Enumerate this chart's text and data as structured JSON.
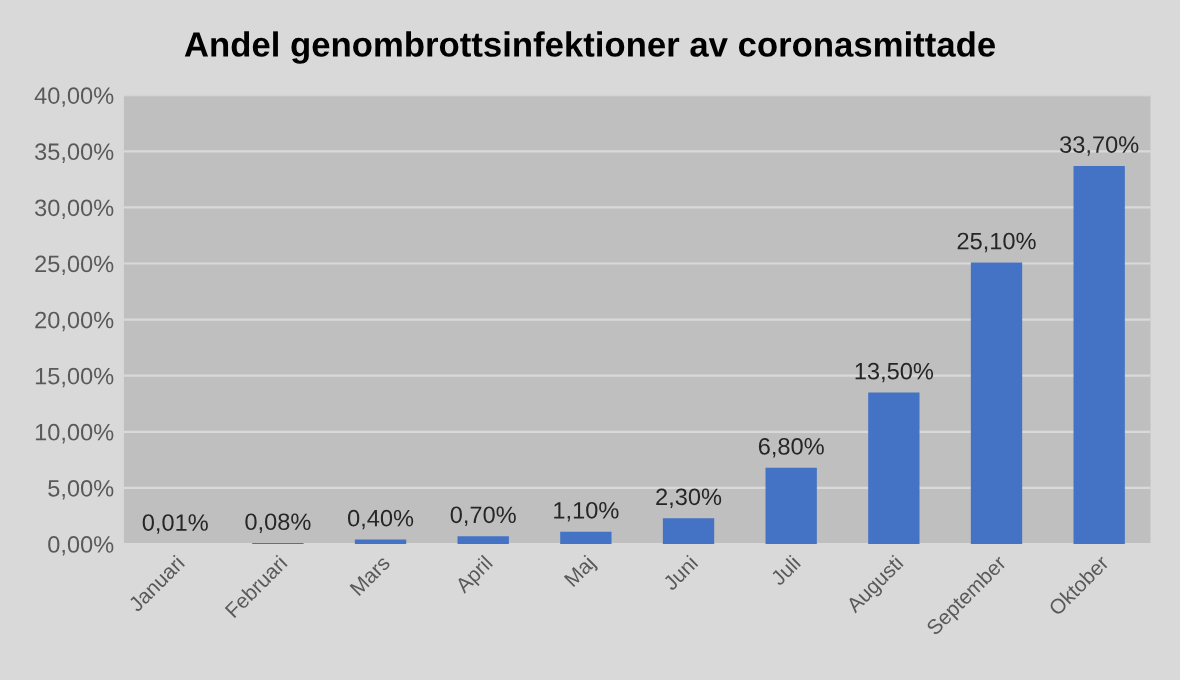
{
  "chart_data": {
    "type": "bar",
    "title": "Andel genombrottsinfektioner av coronasmittade",
    "categories": [
      "Januari",
      "Februari",
      "Mars",
      "April",
      "Maj",
      "Juni",
      "Juli",
      "Augusti",
      "September",
      "Oktober"
    ],
    "values": [
      0.01,
      0.08,
      0.4,
      0.7,
      1.1,
      2.3,
      6.8,
      13.5,
      25.1,
      33.7
    ],
    "value_labels": [
      "0,01%",
      "0,08%",
      "0,40%",
      "0,70%",
      "1,10%",
      "2,30%",
      "6,80%",
      "13,50%",
      "25,10%",
      "33,70%"
    ],
    "color": "#4472c4",
    "ylim": [
      0,
      40
    ],
    "yticks": [
      {
        "value": 0,
        "label": "0,00%"
      },
      {
        "value": 5,
        "label": "5,00%"
      },
      {
        "value": 10,
        "label": "10,00%"
      },
      {
        "value": 15,
        "label": "15,00%"
      },
      {
        "value": 20,
        "label": "20,00%"
      },
      {
        "value": 25,
        "label": "25,00%"
      },
      {
        "value": 30,
        "label": "30,00%"
      },
      {
        "value": 35,
        "label": "35,00%"
      },
      {
        "value": 40,
        "label": "40,00%"
      }
    ],
    "grid": "y"
  }
}
